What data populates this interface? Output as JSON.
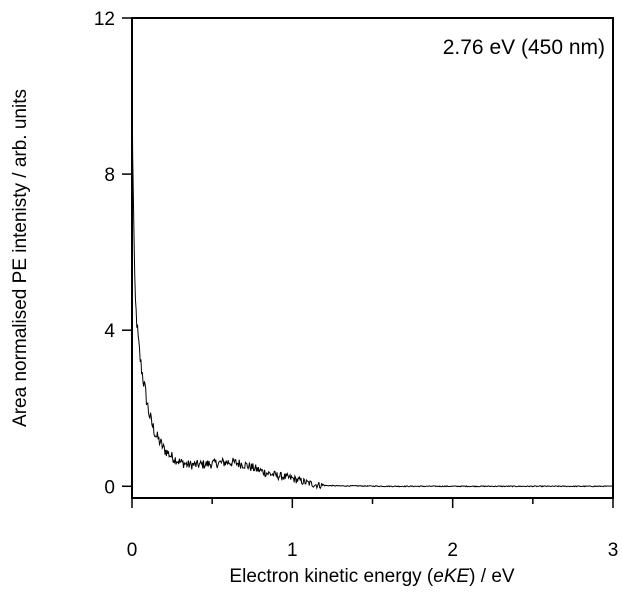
{
  "chart_data": {
    "type": "line",
    "title": "",
    "annotation": "2.76 eV (450 nm)",
    "xlabel": {
      "prefix": "Electron kinetic energy (",
      "italic": "eKE",
      "suffix": ") / eV"
    },
    "ylabel": "Area normalised PE intenisty / arb. units",
    "xlim": [
      0,
      3
    ],
    "ylim": [
      -0.3,
      12
    ],
    "x_ticks": [
      0,
      1,
      2,
      3
    ],
    "x_minor_ticks": [
      0.5,
      1.5,
      2.5
    ],
    "y_ticks": [
      0,
      4,
      8,
      12
    ],
    "grid": false,
    "series": [
      {
        "color": "#000000",
        "x": [
          0.0,
          0.005,
          0.01,
          0.015,
          0.02,
          0.03,
          0.04,
          0.05,
          0.06,
          0.08,
          0.1,
          0.12,
          0.15,
          0.18,
          0.2,
          0.25,
          0.3,
          0.35,
          0.4,
          0.45,
          0.5,
          0.55,
          0.6,
          0.65,
          0.7,
          0.75,
          0.8,
          0.85,
          0.9,
          0.95,
          1.0,
          1.05,
          1.1,
          1.15,
          1.2,
          1.3,
          1.4,
          1.6,
          1.8,
          2.0,
          2.2,
          2.4,
          2.6,
          2.8,
          3.0
        ],
        "y": [
          10.6,
          8.0,
          7.3,
          5.5,
          4.8,
          4.2,
          3.7,
          3.3,
          3.0,
          2.5,
          2.0,
          1.65,
          1.3,
          1.1,
          0.95,
          0.75,
          0.62,
          0.55,
          0.55,
          0.56,
          0.58,
          0.6,
          0.62,
          0.6,
          0.56,
          0.48,
          0.4,
          0.33,
          0.28,
          0.24,
          0.2,
          0.14,
          0.08,
          0.04,
          0.02,
          0.01,
          0.01,
          0.0,
          0.0,
          0.0,
          0.0,
          0.0,
          0.0,
          0.0,
          0.0
        ]
      }
    ]
  }
}
